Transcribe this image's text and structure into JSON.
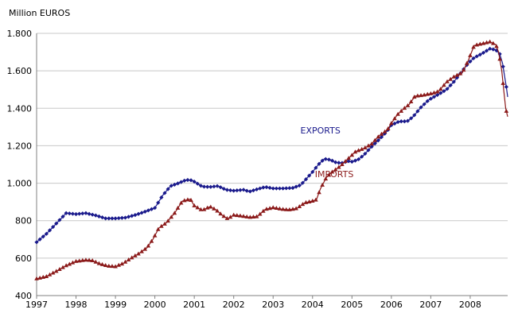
{
  "chart_data": {
    "type": "line",
    "title": "",
    "ylabel": "Million EUROS",
    "xlabel": "",
    "ylim": [
      400,
      1800
    ],
    "yticks": [
      400,
      600,
      800,
      1000,
      1200,
      1400,
      1600,
      1800
    ],
    "ytick_labels": [
      "400",
      "600",
      "800",
      "1.000",
      "1.200",
      "1.400",
      "1.600",
      "1.800"
    ],
    "xlim": [
      1997,
      2008.95
    ],
    "xticks": [
      1997,
      1998,
      1999,
      2000,
      2001,
      2002,
      2003,
      2004,
      2005,
      2006,
      2007,
      2008
    ],
    "xtick_labels": [
      "1997",
      "1998",
      "1999",
      "2000",
      "2001",
      "2002",
      "2003",
      "2004",
      "2005",
      "2006",
      "2007",
      "2008"
    ],
    "grid": "horizontal",
    "series": [
      {
        "name": "EXPORTS",
        "color": "#1a1a8c",
        "marker": "diamond",
        "label_at": [
          2004.2,
          1265
        ],
        "points": [
          [
            1997.0,
            685
          ],
          [
            1997.25,
            730
          ],
          [
            1997.5,
            785
          ],
          [
            1997.75,
            840
          ],
          [
            1998.0,
            835
          ],
          [
            1998.25,
            840
          ],
          [
            1998.5,
            828
          ],
          [
            1998.75,
            812
          ],
          [
            1999.0,
            812
          ],
          [
            1999.25,
            816
          ],
          [
            1999.5,
            830
          ],
          [
            1999.75,
            848
          ],
          [
            2000.0,
            868
          ],
          [
            2000.2,
            935
          ],
          [
            2000.4,
            985
          ],
          [
            2000.6,
            1000
          ],
          [
            2000.8,
            1018
          ],
          [
            2000.95,
            1015
          ],
          [
            2001.2,
            982
          ],
          [
            2001.4,
            980
          ],
          [
            2001.6,
            985
          ],
          [
            2001.8,
            965
          ],
          [
            2002.0,
            960
          ],
          [
            2002.25,
            965
          ],
          [
            2002.4,
            955
          ],
          [
            2002.6,
            968
          ],
          [
            2002.8,
            980
          ],
          [
            2003.0,
            972
          ],
          [
            2003.25,
            972
          ],
          [
            2003.5,
            975
          ],
          [
            2003.7,
            990
          ],
          [
            2004.0,
            1060
          ],
          [
            2004.15,
            1100
          ],
          [
            2004.3,
            1130
          ],
          [
            2004.45,
            1125
          ],
          [
            2004.6,
            1110
          ],
          [
            2004.75,
            1108
          ],
          [
            2004.9,
            1118
          ],
          [
            2005.0,
            1115
          ],
          [
            2005.15,
            1125
          ],
          [
            2005.3,
            1150
          ],
          [
            2005.5,
            1195
          ],
          [
            2005.7,
            1235
          ],
          [
            2005.9,
            1280
          ],
          [
            2006.0,
            1310
          ],
          [
            2006.2,
            1330
          ],
          [
            2006.4,
            1330
          ],
          [
            2006.55,
            1355
          ],
          [
            2006.75,
            1405
          ],
          [
            2006.95,
            1445
          ],
          [
            2007.2,
            1475
          ],
          [
            2007.4,
            1500
          ],
          [
            2007.6,
            1545
          ],
          [
            2007.8,
            1600
          ],
          [
            2007.95,
            1640
          ],
          [
            2008.1,
            1670
          ],
          [
            2008.3,
            1692
          ],
          [
            2008.5,
            1718
          ],
          [
            2008.65,
            1712
          ],
          [
            2008.75,
            1690
          ],
          [
            2008.82,
            1640
          ],
          [
            2008.87,
            1575
          ],
          [
            2008.92,
            1510
          ],
          [
            2008.95,
            1460
          ]
        ]
      },
      {
        "name": "IMPORTS",
        "color": "#8b1a1a",
        "marker": "triangle",
        "label_at": [
          2004.55,
          1032
        ],
        "points": [
          [
            1997.0,
            490
          ],
          [
            1997.25,
            502
          ],
          [
            1997.5,
            530
          ],
          [
            1997.75,
            560
          ],
          [
            1998.0,
            583
          ],
          [
            1998.25,
            590
          ],
          [
            1998.4,
            588
          ],
          [
            1998.6,
            570
          ],
          [
            1998.8,
            558
          ],
          [
            1999.0,
            555
          ],
          [
            1999.2,
            572
          ],
          [
            1999.4,
            600
          ],
          [
            1999.6,
            625
          ],
          [
            1999.8,
            655
          ],
          [
            1999.95,
            700
          ],
          [
            2000.1,
            760
          ],
          [
            2000.3,
            790
          ],
          [
            2000.5,
            840
          ],
          [
            2000.7,
            905
          ],
          [
            2000.9,
            915
          ],
          [
            2001.0,
            880
          ],
          [
            2001.2,
            855
          ],
          [
            2001.4,
            875
          ],
          [
            2001.55,
            858
          ],
          [
            2001.7,
            830
          ],
          [
            2001.85,
            810
          ],
          [
            2002.0,
            830
          ],
          [
            2002.2,
            825
          ],
          [
            2002.4,
            818
          ],
          [
            2002.6,
            822
          ],
          [
            2002.8,
            860
          ],
          [
            2003.0,
            870
          ],
          [
            2003.2,
            862
          ],
          [
            2003.4,
            858
          ],
          [
            2003.6,
            865
          ],
          [
            2003.8,
            895
          ],
          [
            2004.0,
            905
          ],
          [
            2004.1,
            912
          ],
          [
            2004.2,
            970
          ],
          [
            2004.35,
            1030
          ],
          [
            2004.5,
            1060
          ],
          [
            2004.7,
            1090
          ],
          [
            2004.9,
            1130
          ],
          [
            2005.1,
            1170
          ],
          [
            2005.3,
            1185
          ],
          [
            2005.5,
            1210
          ],
          [
            2005.7,
            1255
          ],
          [
            2005.9,
            1285
          ],
          [
            2006.0,
            1320
          ],
          [
            2006.15,
            1365
          ],
          [
            2006.3,
            1395
          ],
          [
            2006.45,
            1420
          ],
          [
            2006.6,
            1465
          ],
          [
            2006.8,
            1470
          ],
          [
            2007.0,
            1478
          ],
          [
            2007.2,
            1490
          ],
          [
            2007.4,
            1540
          ],
          [
            2007.6,
            1570
          ],
          [
            2007.8,
            1590
          ],
          [
            2007.95,
            1655
          ],
          [
            2008.1,
            1735
          ],
          [
            2008.3,
            1745
          ],
          [
            2008.5,
            1755
          ],
          [
            2008.65,
            1740
          ],
          [
            2008.72,
            1700
          ],
          [
            2008.8,
            1600
          ],
          [
            2008.85,
            1500
          ],
          [
            2008.9,
            1400
          ],
          [
            2008.95,
            1355
          ]
        ]
      }
    ]
  }
}
